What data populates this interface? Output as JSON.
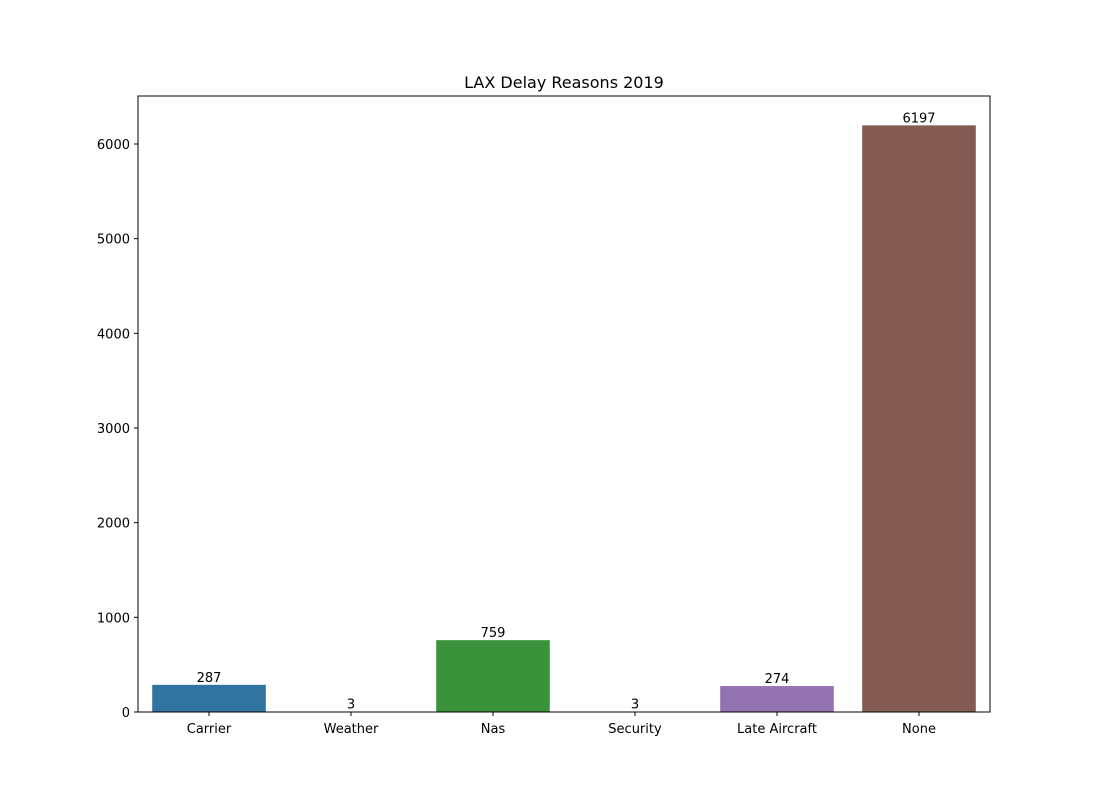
{
  "chart_data": {
    "type": "bar",
    "title": "LAX Delay Reasons 2019",
    "xlabel": "",
    "ylabel": "",
    "categories": [
      "Carrier",
      "Weather",
      "Nas",
      "Security",
      "Late Aircraft",
      "None"
    ],
    "values": [
      287,
      3,
      759,
      3,
      274,
      6197
    ],
    "data_labels": [
      "287",
      "3",
      "759",
      "3",
      "274",
      "6197"
    ],
    "colors": [
      "#3274a1",
      "#e1812c",
      "#3a923a",
      "#c03d3e",
      "#9372b2",
      "#845b53"
    ],
    "ylim": [
      0,
      6507
    ],
    "yticks": [
      0,
      1000,
      2000,
      3000,
      4000,
      5000,
      6000
    ],
    "grid": false,
    "legend": "none"
  }
}
